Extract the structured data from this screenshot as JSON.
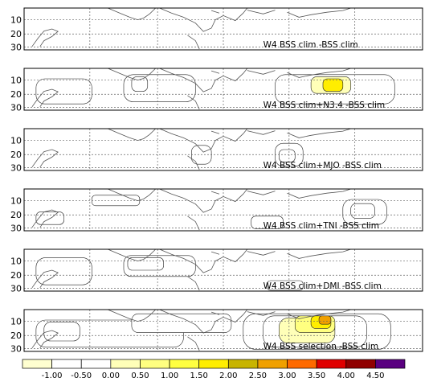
{
  "chart_data": {
    "type": "heatmap",
    "grid": true,
    "legend_placement": "bottom",
    "y_tick_labels": [
      "10",
      "20",
      "30"
    ],
    "panels": [
      {
        "title": "W4 BSS clim -BSS clim",
        "patches": []
      },
      {
        "title": "W4 BSS clim+N3.4 -BSS clim",
        "patches": [
          {
            "level": 1,
            "lon": [
              0.03,
              0.17
            ],
            "lat": [
              0.25,
              0.85
            ]
          },
          {
            "level": 1,
            "lon": [
              0.25,
              0.43
            ],
            "lat": [
              0.15,
              0.8
            ]
          },
          {
            "level": 2,
            "lon": [
              0.27,
              0.31
            ],
            "lat": [
              0.2,
              0.55
            ]
          },
          {
            "level": 1,
            "lon": [
              0.63,
              0.93
            ],
            "lat": [
              0.15,
              0.85
            ]
          },
          {
            "level": 3,
            "lon": [
              0.72,
              0.82
            ],
            "lat": [
              0.2,
              0.6
            ]
          },
          {
            "level": 6,
            "lon": [
              0.75,
              0.8
            ],
            "lat": [
              0.25,
              0.55
            ]
          }
        ]
      },
      {
        "title": "W4 BSS clim+MJO -BSS clim",
        "patches": [
          {
            "level": 1,
            "lon": [
              0.42,
              0.47
            ],
            "lat": [
              0.4,
              0.85
            ]
          },
          {
            "level": 1,
            "lon": [
              0.63,
              0.7
            ],
            "lat": [
              0.35,
              0.9
            ]
          },
          {
            "level": 2,
            "lon": [
              0.64,
              0.68
            ],
            "lat": [
              0.5,
              0.8
            ]
          }
        ]
      },
      {
        "title": "W4 BSS clim+TNI -BSS clim",
        "patches": [
          {
            "level": 1,
            "lon": [
              0.03,
              0.1
            ],
            "lat": [
              0.55,
              0.85
            ]
          },
          {
            "level": 1,
            "lon": [
              0.17,
              0.29
            ],
            "lat": [
              0.15,
              0.4
            ]
          },
          {
            "level": 1,
            "lon": [
              0.57,
              0.65
            ],
            "lat": [
              0.65,
              0.95
            ]
          },
          {
            "level": 1,
            "lon": [
              0.8,
              0.91
            ],
            "lat": [
              0.25,
              0.85
            ]
          },
          {
            "level": 2,
            "lon": [
              0.82,
              0.88
            ],
            "lat": [
              0.35,
              0.7
            ]
          }
        ]
      },
      {
        "title": "W4 BSS clim+DMI -BSS clim",
        "patches": [
          {
            "level": 1,
            "lon": [
              0.03,
              0.17
            ],
            "lat": [
              0.2,
              0.85
            ]
          },
          {
            "level": 1,
            "lon": [
              0.25,
              0.43
            ],
            "lat": [
              0.15,
              0.65
            ]
          },
          {
            "level": 2,
            "lon": [
              0.26,
              0.35
            ],
            "lat": [
              0.2,
              0.5
            ]
          },
          {
            "level": 1,
            "lon": [
              0.61,
              0.7
            ],
            "lat": [
              0.75,
              0.98
            ]
          }
        ]
      },
      {
        "title": "W4 BSS selection -BSS clim",
        "patches": [
          {
            "level": 1,
            "lon": [
              0.03,
              0.4
            ],
            "lat": [
              0.25,
              0.9
            ]
          },
          {
            "level": 2,
            "lon": [
              0.05,
              0.14
            ],
            "lat": [
              0.3,
              0.75
            ]
          },
          {
            "level": 1,
            "lon": [
              0.27,
              0.52
            ],
            "lat": [
              0.1,
              0.55
            ]
          },
          {
            "level": 1,
            "lon": [
              0.55,
              0.92
            ],
            "lat": [
              0.1,
              0.95
            ]
          },
          {
            "level": 2,
            "lon": [
              0.6,
              0.86
            ],
            "lat": [
              0.15,
              0.9
            ]
          },
          {
            "level": 3,
            "lon": [
              0.64,
              0.78
            ],
            "lat": [
              0.2,
              0.8
            ]
          },
          {
            "level": 4,
            "lon": [
              0.68,
              0.78
            ],
            "lat": [
              0.15,
              0.55
            ]
          },
          {
            "level": 6,
            "lon": [
              0.72,
              0.77
            ],
            "lat": [
              0.15,
              0.45
            ]
          },
          {
            "level": 8,
            "lon": [
              0.74,
              0.77
            ],
            "lat": [
              0.15,
              0.35
            ]
          }
        ]
      }
    ],
    "colorbar": {
      "labels": [
        "-1.00",
        "-0.50",
        "0.00",
        "0.50",
        "1.00",
        "1.50",
        "2.00",
        "2.50",
        "3.00",
        "3.50",
        "4.00",
        "4.50"
      ],
      "colors": [
        "#ffffd0",
        "#ffffff",
        "#ffffff",
        "#ffffb8",
        "#ffff80",
        "#ffff40",
        "#ffee00",
        "#c8b400",
        "#f0a000",
        "#ff6a00",
        "#e00000",
        "#900000",
        "#5a0080"
      ]
    }
  }
}
